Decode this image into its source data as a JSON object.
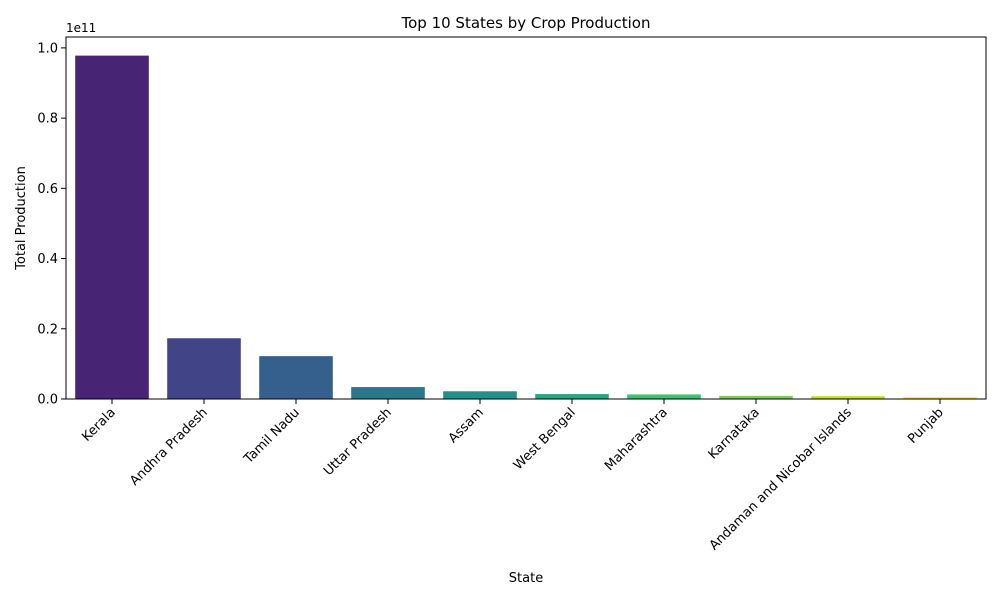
{
  "chart_data": {
    "type": "bar",
    "title": "Top 10 States by Crop Production",
    "xlabel": "State",
    "ylabel": "Total Production",
    "offset_label": "1e11",
    "ylim": [
      0,
      1.0
    ],
    "y_scale_factor": 100000000000.0,
    "yticks": [
      0.0,
      0.2,
      0.4,
      0.6,
      0.8,
      1.0
    ],
    "ytick_labels": [
      "0.0",
      "0.2",
      "0.4",
      "0.6",
      "0.8",
      "1.0"
    ],
    "grid": false,
    "legend": "none",
    "categories": [
      "Kerala",
      "Andhra Pradesh",
      "Tamil Nadu",
      "Uttar Pradesh",
      "Assam",
      "West Bengal",
      "Maharashtra",
      "Karnataka",
      "Andaman and Nicobar Islands",
      "Punjab"
    ],
    "values": [
      0.978,
      0.173,
      0.122,
      0.034,
      0.022,
      0.014,
      0.013,
      0.009,
      0.008,
      0.005
    ],
    "colors": [
      "#482475",
      "#414487",
      "#355f8d",
      "#2a788e",
      "#21918c",
      "#22a884",
      "#44bf70",
      "#7ad151",
      "#bddf26",
      "#fde725"
    ]
  }
}
